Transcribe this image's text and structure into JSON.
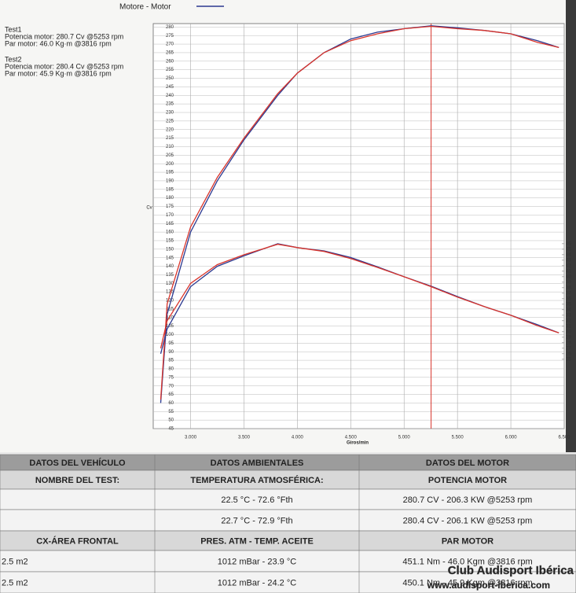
{
  "chart_data": {
    "type": "line",
    "title": "Motore - Motor",
    "ylabel": "Cv",
    "xlabel": "Giros/min",
    "x": [
      2720,
      2780,
      3000,
      3250,
      3500,
      3816,
      4000,
      4250,
      4500,
      4750,
      5000,
      5253,
      5500,
      5750,
      6000,
      6250,
      6450
    ],
    "xlim": [
      2650,
      6500
    ],
    "xticks": [
      {
        "value": 3000,
        "label": "3.000"
      },
      {
        "value": 3500,
        "label": "3.500"
      },
      {
        "value": 4000,
        "label": "4.000"
      },
      {
        "value": 4500,
        "label": "4.500"
      },
      {
        "value": 5000,
        "label": "5.000"
      },
      {
        "value": 5500,
        "label": "5.500"
      },
      {
        "value": 6000,
        "label": "6.000"
      },
      {
        "value": 6500,
        "label": "6.500"
      }
    ],
    "ylim": [
      45,
      282
    ],
    "yticks": [
      45,
      50,
      55,
      60,
      65,
      70,
      75,
      80,
      85,
      90,
      95,
      100,
      105,
      110,
      115,
      120,
      125,
      130,
      135,
      140,
      145,
      150,
      155,
      160,
      165,
      170,
      175,
      180,
      185,
      190,
      195,
      200,
      205,
      210,
      215,
      220,
      225,
      230,
      235,
      240,
      245,
      250,
      255,
      260,
      265,
      270,
      275,
      280
    ],
    "y2lim": [
      12.4,
      86
    ],
    "y2ticks": [
      25,
      26,
      27,
      28,
      29,
      30,
      31,
      32,
      33,
      34,
      35,
      36,
      37,
      38,
      39,
      40,
      41,
      42,
      43,
      44,
      45,
      46
    ],
    "grid": true,
    "marker_x": 5253,
    "series": [
      {
        "name": "Test1",
        "color": "#2b3990",
        "summary": [
          "Potencia motor: 280.7 Cv @5253 rpm",
          "Par motor: 46.0 Kg·m @3816 rpm"
        ],
        "values": [
          60,
          112,
          160,
          190,
          214,
          240,
          253,
          265,
          273,
          277,
          279,
          280.7,
          279.5,
          278,
          276,
          272,
          268
        ]
      },
      {
        "name": "Test2",
        "color": "#d9342b",
        "summary": [
          "Potencia motor: 280.4 Cv @5253 rpm",
          "Par motor: 45.9 Kg·m @3816 rpm"
        ],
        "values": [
          62,
          118,
          163,
          192,
          215,
          241,
          253,
          265,
          272,
          276,
          279,
          280.4,
          279,
          278,
          276,
          271,
          268
        ]
      },
      {
        "color": "#2b3990",
        "axis": "y2",
        "values": [
          26,
          30.5,
          38.2,
          41.9,
          43.8,
          46.0,
          45.3,
          44.7,
          43.5,
          41.8,
          40.0,
          38.3,
          36.4,
          34.6,
          33.0,
          31.3,
          29.8
        ]
      },
      {
        "color": "#d9342b",
        "axis": "y2",
        "values": [
          27,
          32,
          38.8,
          42.2,
          44.0,
          45.9,
          45.3,
          44.6,
          43.3,
          41.7,
          40.0,
          38.2,
          36.3,
          34.6,
          33.0,
          31.1,
          29.8
        ]
      }
    ]
  },
  "table": {
    "head": {
      "vehicle": "DATOS DEL VEHÍCULO",
      "ambient": "DATOS AMBIENTALES",
      "engine": "DATOS DEL MOTOR"
    },
    "rows": [
      {
        "vehicle": "NOMBRE DEL TEST:",
        "ambient": "TEMPERATURA ATMOSFÉRICA:",
        "engine": "POTENCIA MOTOR"
      },
      {
        "ambient": "22.5 °C - 72.6 °Fth",
        "engine": "280.7 CV - 206.3 KW @5253 rpm"
      },
      {
        "ambient": "22.7 °C - 72.9 °Fth",
        "engine": "280.4 CV - 206.1 KW @5253 rpm"
      },
      {
        "vehicle": "CX-ÁREA FRONTAL",
        "ambient": "PRES. ATM - TEMP. ACEITE",
        "engine": "PAR MOTOR"
      },
      {
        "vehicle": "2.5 m2",
        "ambient": "1012 mBar - 23.9 °C",
        "engine": "451.1 Nm - 46.0 Kgm @3816 rpm"
      },
      {
        "vehicle": "2.5 m2",
        "ambient": "1012 mBar - 24.2 °C",
        "engine": "450.1 Nm - 45.9 Kgm @3816 rpm"
      }
    ]
  },
  "watermark": {
    "name": "Club Audisport Ibérica",
    "url": "www.audisport-iberica.com"
  }
}
